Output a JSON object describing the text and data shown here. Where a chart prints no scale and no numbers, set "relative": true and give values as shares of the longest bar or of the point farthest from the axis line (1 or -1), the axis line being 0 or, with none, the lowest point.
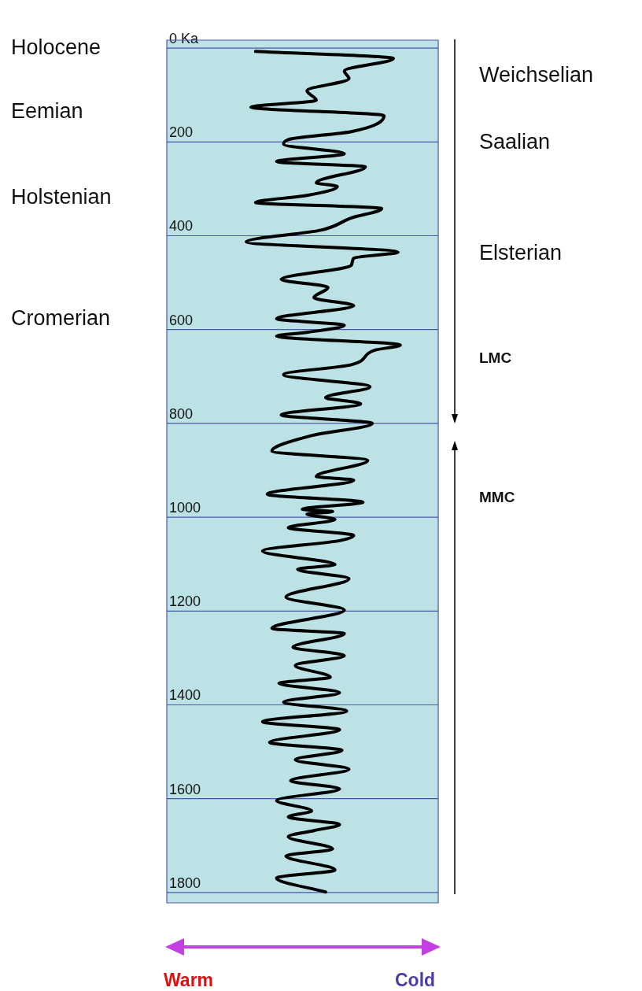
{
  "chart_data": {
    "type": "line",
    "orientation": "horizontal",
    "relative": true,
    "color": "#000000",
    "marker": "none",
    "line_style": "solid",
    "grid": "y",
    "x": [
      7,
      22,
      49,
      65,
      91,
      111,
      126,
      144,
      178,
      195,
      205,
      225,
      242,
      253,
      287,
      295,
      314,
      329,
      342,
      362,
      388,
      413,
      435,
      448,
      463,
      493,
      510,
      532,
      549,
      577,
      591,
      606,
      614,
      633,
      644,
      675,
      696,
      722,
      745,
      758,
      782,
      800,
      826,
      859,
      879,
      913,
      921,
      951,
      968,
      983,
      988,
      993,
      1005,
      1022,
      1039,
      1050,
      1072,
      1101,
      1111,
      1131,
      1170,
      1198,
      1237,
      1248,
      1277,
      1295,
      1316,
      1341,
      1354,
      1374,
      1394,
      1413,
      1436,
      1453,
      1480,
      1497,
      1517,
      1537,
      1562,
      1579,
      1604,
      1626,
      1639,
      1655,
      1668,
      1681,
      1707,
      1722,
      1752,
      1769,
      1799
    ],
    "values": [
      0.38,
      0.97,
      0.76,
      0.78,
      0.6,
      0.64,
      0.36,
      0.93,
      0.79,
      0.52,
      0.5,
      0.76,
      0.47,
      0.85,
      0.64,
      0.73,
      0.6,
      0.38,
      0.92,
      0.79,
      0.66,
      0.34,
      0.99,
      0.8,
      0.79,
      0.49,
      0.69,
      0.63,
      0.8,
      0.47,
      0.76,
      0.6,
      0.47,
      1,
      0.89,
      0.79,
      0.5,
      0.87,
      0.68,
      0.83,
      0.49,
      0.88,
      0.62,
      0.45,
      0.86,
      0.64,
      0.8,
      0.43,
      0.84,
      0.58,
      0.71,
      0.6,
      0.72,
      0.52,
      0.8,
      0.74,
      0.41,
      0.72,
      0.56,
      0.78,
      0.51,
      0.76,
      0.45,
      0.76,
      0.54,
      0.76,
      0.55,
      0.7,
      0.48,
      0.74,
      0.5,
      0.77,
      0.41,
      0.74,
      0.44,
      0.75,
      0.55,
      0.78,
      0.53,
      0.74,
      0.47,
      0.62,
      0.52,
      0.74,
      0.63,
      0.52,
      0.71,
      0.51,
      0.72,
      0.47,
      0.68
    ],
    "ylim": [
      1822,
      -17
    ],
    "yticks": [
      {
        "value": 0,
        "label": "0 Ka"
      },
      200,
      400,
      600,
      800,
      1000,
      1200,
      1400,
      1600,
      1800
    ],
    "annotations": [
      "Holocene",
      "Eemian",
      "Holstenian",
      "Cromerian",
      "Weichselian",
      "Saalian",
      "Elsterian",
      "LMC",
      "MMC",
      "Warm",
      "Cold"
    ]
  }
}
